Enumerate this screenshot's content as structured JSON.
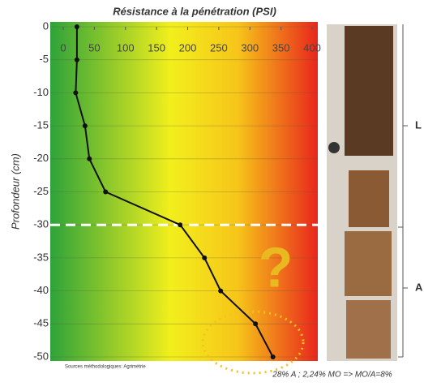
{
  "chart_data": {
    "type": "line",
    "title": "Résistance à la pénétration (PSI)",
    "y_label": "Profondeur (cm)",
    "x": [
      22,
      22,
      20,
      35,
      42,
      68,
      188,
      227,
      253,
      309,
      337
    ],
    "values": [
      0,
      -5,
      -10,
      -15,
      -20,
      -25,
      -30,
      -35,
      -40,
      -45,
      -50
    ],
    "color": "#111111",
    "xlim": [
      0,
      400
    ],
    "xticks": [
      0,
      50,
      100,
      150,
      200,
      250,
      300,
      350,
      400
    ],
    "ylim": [
      -50,
      0
    ],
    "yticks": [
      0,
      -5,
      -10,
      -15,
      -20,
      -25,
      -30,
      -35,
      -40,
      -45,
      -50
    ],
    "grid": true,
    "threshold": -30,
    "annotations": {
      "question": "?",
      "source": "Sources méthodologiques: Agrimétrie",
      "caption": "28% A ; 2,24% MO => MO/A=8%",
      "layers": [
        "L",
        "A"
      ]
    }
  }
}
